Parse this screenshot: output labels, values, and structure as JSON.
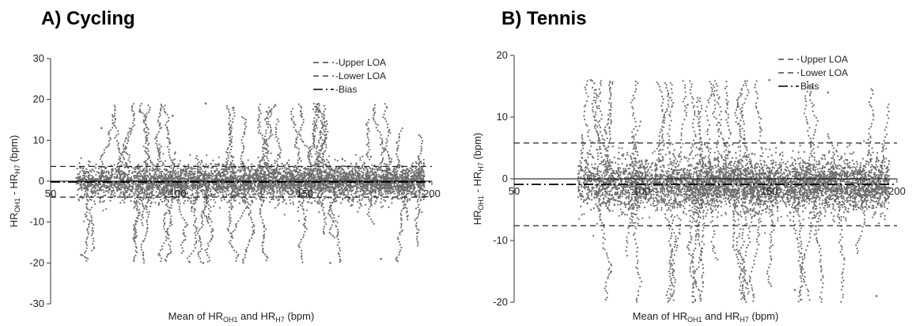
{
  "chart_data": [
    {
      "type": "scatter",
      "panel_title": "A) Cycling",
      "xlabel": {
        "prefix": "Mean of HR",
        "sub1": "OH1",
        "mid": " and HR",
        "sub2": "H7",
        "suffix": " (bpm)"
      },
      "ylabel": {
        "prefix": "HR",
        "sub1": "OH1",
        "mid": " - HR",
        "sub2": "H7",
        "suffix": " (bpm)"
      },
      "xlim": [
        50,
        200
      ],
      "ylim": [
        -30,
        30
      ],
      "xticks": [
        50,
        100,
        150,
        200
      ],
      "yticks": [
        30,
        20,
        10,
        0,
        -10,
        -20,
        -30
      ],
      "x_axis_crosses_at": 0,
      "grid": false,
      "legend_position": "top-right",
      "legend": [
        {
          "label": "-Upper LOA",
          "style": "dashed"
        },
        {
          "label": "-Lower LOA",
          "style": "dashed"
        },
        {
          "label": "-Bias",
          "style": "dash-dot"
        }
      ],
      "reference_lines": {
        "upper_loa": 3.6,
        "lower_loa": -3.9,
        "bias": -0.2
      },
      "point_color": "#6e6e6e",
      "points_description_free": true,
      "cloud": {
        "x_range": [
          60,
          197
        ],
        "core_sd": [
          2.5,
          4.5
        ],
        "extremes": [
          -20,
          19
        ]
      },
      "sample_points": [
        {
          "x": 62,
          "y": -18
        },
        {
          "x": 70,
          "y": 13
        },
        {
          "x": 85,
          "y": 17
        },
        {
          "x": 98,
          "y": 16
        },
        {
          "x": 111,
          "y": 19
        },
        {
          "x": 122,
          "y": 18
        },
        {
          "x": 135,
          "y": 17
        },
        {
          "x": 156,
          "y": 12
        },
        {
          "x": 176,
          "y": 6
        },
        {
          "x": 180,
          "y": -19
        },
        {
          "x": 160,
          "y": -20
        },
        {
          "x": 110,
          "y": -20
        }
      ]
    },
    {
      "type": "scatter",
      "panel_title": "B) Tennis",
      "xlabel": {
        "prefix": "Mean of HR",
        "sub1": "OH1",
        "mid": " and HR",
        "sub2": "H7",
        "suffix": " (bpm)"
      },
      "ylabel": {
        "prefix": "HR",
        "sub1": "OH1",
        "mid": " - HR",
        "sub2": "H7",
        "suffix": " (bpm)"
      },
      "xlim": [
        50,
        200
      ],
      "ylim": [
        -20,
        20
      ],
      "xticks": [
        50,
        100,
        150,
        200
      ],
      "yticks": [
        20,
        10,
        0,
        -10,
        -20
      ],
      "x_axis_crosses_at": 0,
      "grid": false,
      "legend_position": "top-right",
      "legend": [
        {
          "label": "Upper LOA",
          "style": "dashed"
        },
        {
          "label": "Lower LOA",
          "style": "dashed"
        },
        {
          "label": "Bias",
          "style": "dash-dot"
        }
      ],
      "reference_lines": {
        "upper_loa": 5.8,
        "lower_loa": -7.6,
        "bias": -0.9
      },
      "point_color": "#6e6e6e",
      "cloud": {
        "x_range": [
          75,
          197
        ],
        "core_sd": [
          2.5,
          4.5
        ],
        "extremes": [
          -20,
          16
        ]
      },
      "sample_points": [
        {
          "x": 80,
          "y": 16
        },
        {
          "x": 150,
          "y": 16
        },
        {
          "x": 173,
          "y": 14
        },
        {
          "x": 118,
          "y": 12
        },
        {
          "x": 192,
          "y": -19
        },
        {
          "x": 120,
          "y": -20
        },
        {
          "x": 88,
          "y": -15
        },
        {
          "x": 160,
          "y": -18
        }
      ]
    }
  ]
}
